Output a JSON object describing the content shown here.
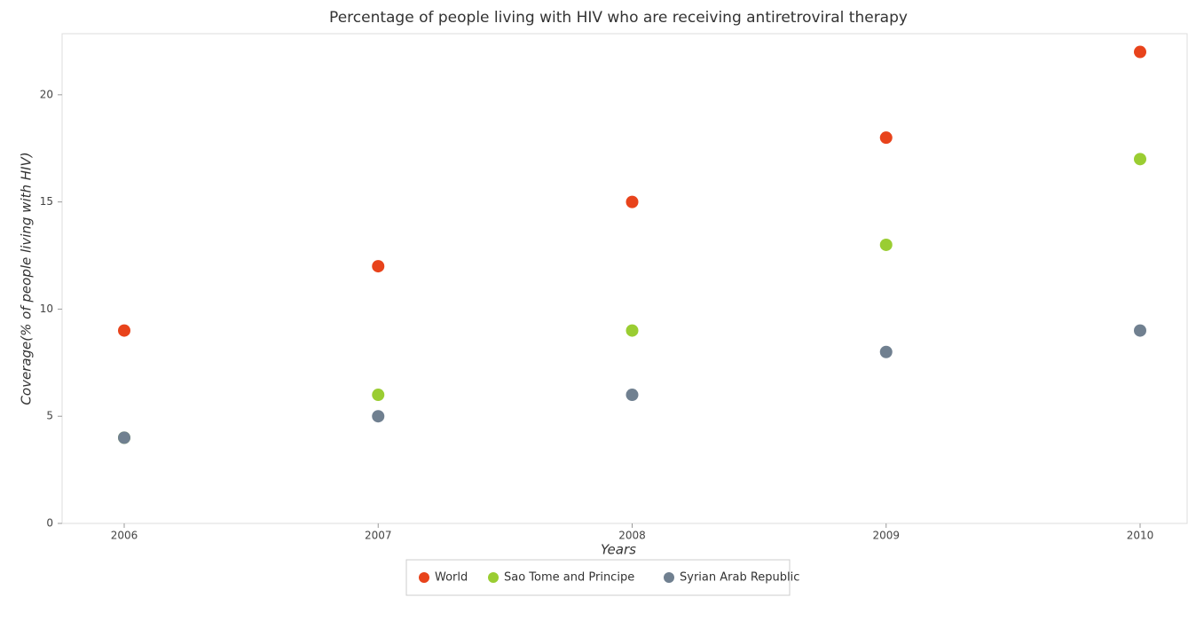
{
  "chart_data": {
    "type": "scatter",
    "title": "Percentage of people living with HIV who are receiving antiretroviral therapy",
    "x_label": "Years",
    "y_label": "Coverage(% of people living with HIV)",
    "categories": [
      "2006",
      "2007",
      "2008",
      "2009",
      "2010"
    ],
    "series": [
      {
        "name": "World",
        "color": "#e8431b",
        "values": [
          9,
          12,
          15,
          18,
          22
        ]
      },
      {
        "name": "Sao Tome and Principe",
        "color": "#9acd32",
        "values": [
          4,
          6,
          9,
          13,
          17
        ]
      },
      {
        "name": "Syrian Arab Republic",
        "color": "#708090",
        "values": [
          4,
          5,
          6,
          8,
          9
        ]
      }
    ],
    "ylim": [
      0,
      22.85
    ],
    "yticks": [
      0,
      5,
      10,
      15,
      20
    ],
    "grid": false,
    "legend": "bottom"
  }
}
